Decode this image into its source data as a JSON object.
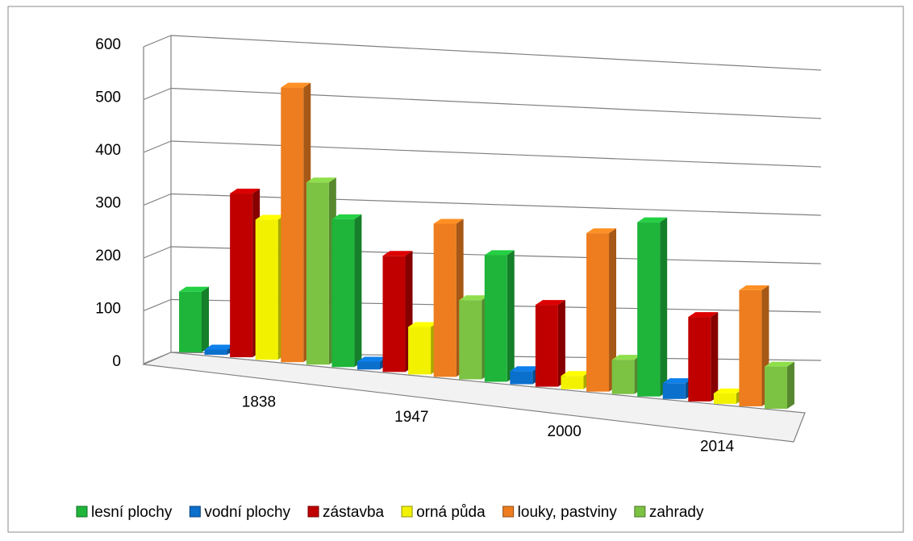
{
  "chart_data": {
    "type": "bar3d",
    "categories": [
      "1838",
      "1947",
      "2000",
      "2014"
    ],
    "series": [
      {
        "name": "lesní plochy",
        "color": "#1eb53a",
        "values": [
          115,
          280,
          240,
          330
        ]
      },
      {
        "name": "vodní plochy",
        "color": "#0b6fcc",
        "values": [
          10,
          15,
          25,
          30
        ]
      },
      {
        "name": "zástavba",
        "color": "#c00000",
        "values": [
          310,
          220,
          155,
          160
        ]
      },
      {
        "name": "orná půda",
        "color": "#f2f200",
        "values": [
          265,
          90,
          25,
          20
        ]
      },
      {
        "name": "louky, pastviny",
        "color": "#ed7d1f",
        "values": [
          520,
          290,
          300,
          220
        ]
      },
      {
        "name": "zahrady",
        "color": "#7cc243",
        "values": [
          345,
          150,
          65,
          80
        ]
      }
    ],
    "ylim": [
      0,
      600
    ],
    "yticks": [
      0,
      100,
      200,
      300,
      400,
      500,
      600
    ],
    "grid": true,
    "legend": "bottom"
  }
}
